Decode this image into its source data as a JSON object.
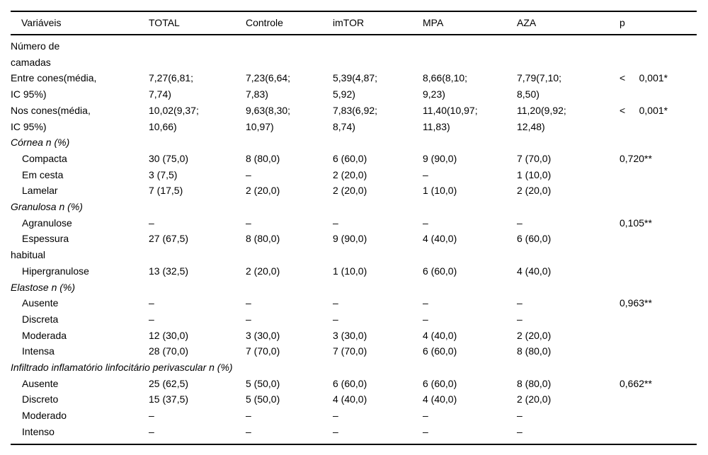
{
  "page": {
    "background_color": "#ffffff",
    "text_color": "#000000",
    "rule_color": "#000000"
  },
  "table": {
    "headers": [
      "Variáveis",
      "TOTAL",
      "Controle",
      "imTOR",
      "MPA",
      "AZA",
      "p"
    ],
    "rows": [
      {
        "style": "plain",
        "label": "Número de\ncamadas",
        "cells": [
          "",
          "",
          "",
          "",
          ""
        ],
        "p": ""
      },
      {
        "style": "plain",
        "label": "Entre cones(média,\nIC 95%)",
        "cells": [
          "7,27(6,81;\n7,74)",
          "7,23(6,64;\n7,83)",
          "5,39(4,87;\n5,92)",
          "8,66(8,10;\n9,23)",
          "7,79(7,10;\n8,50)"
        ],
        "p": "<     0,001*"
      },
      {
        "style": "plain",
        "label": "Nos cones(média,\nIC 95%)",
        "cells": [
          "10,02(9,37;\n10,66)",
          "9,63(8,30;\n10,97)",
          "7,83(6,92;\n8,74)",
          "11,40(10,97;\n11,83)",
          "11,20(9,92;\n12,48)"
        ],
        "p": "<     0,001*"
      },
      {
        "style": "section",
        "label": "Córnea n (%)",
        "cells": [
          "",
          "",
          "",
          "",
          ""
        ],
        "p": ""
      },
      {
        "style": "item",
        "label": "Compacta",
        "cells": [
          "30 (75,0)",
          "8 (80,0)",
          "6 (60,0)",
          "9 (90,0)",
          "7 (70,0)"
        ],
        "p": "0,720**"
      },
      {
        "style": "item",
        "label": "Em cesta",
        "cells": [
          "3 (7,5)",
          "–",
          "2 (20,0)",
          "–",
          "1 (10,0)"
        ],
        "p": ""
      },
      {
        "style": "item",
        "label": "Lamelar",
        "cells": [
          "7 (17,5)",
          "2 (20,0)",
          "2 (20,0)",
          "1 (10,0)",
          "2 (20,0)"
        ],
        "p": ""
      },
      {
        "style": "section",
        "label": "Granulosa n (%)",
        "cells": [
          "",
          "",
          "",
          "",
          ""
        ],
        "p": ""
      },
      {
        "style": "item",
        "label": "Agranulose",
        "cells": [
          "–",
          "–",
          "–",
          "–",
          "–"
        ],
        "p": "0,105**"
      },
      {
        "style": "item",
        "label": "Espessura\nhabitual",
        "cells": [
          "27 (67,5)",
          "8 (80,0)",
          "9 (90,0)",
          "4 (40,0)",
          "6 (60,0)"
        ],
        "p": ""
      },
      {
        "style": "item",
        "label": "Hipergranulose",
        "cells": [
          "13 (32,5)",
          "2 (20,0)",
          "1 (10,0)",
          "6 (60,0)",
          "4 (40,0)"
        ],
        "p": ""
      },
      {
        "style": "section",
        "label": "Elastose n (%)",
        "cells": [
          "",
          "",
          "",
          "",
          ""
        ],
        "p": ""
      },
      {
        "style": "item",
        "label": "Ausente",
        "cells": [
          "–",
          "–",
          "–",
          "–",
          "–"
        ],
        "p": "0,963**"
      },
      {
        "style": "item",
        "label": "Discreta",
        "cells": [
          "–",
          "–",
          "–",
          "–",
          "–"
        ],
        "p": ""
      },
      {
        "style": "item",
        "label": "Moderada",
        "cells": [
          "12 (30,0)",
          "3 (30,0)",
          "3 (30,0)",
          "4 (40,0)",
          "2 (20,0)"
        ],
        "p": ""
      },
      {
        "style": "item",
        "label": "Intensa",
        "cells": [
          "28 (70,0)",
          "7 (70,0)",
          "7 (70,0)",
          "6 (60,0)",
          "8 (80,0)"
        ],
        "p": ""
      },
      {
        "style": "section",
        "label": "Infiltrado inflamatório linfocitário perivascular n (%)",
        "cells": [
          "",
          "",
          "",
          "",
          ""
        ],
        "p": ""
      },
      {
        "style": "item",
        "label": "Ausente",
        "cells": [
          "25 (62,5)",
          "5 (50,0)",
          "6 (60,0)",
          "6 (60,0)",
          "8 (80,0)"
        ],
        "p": "0,662**"
      },
      {
        "style": "item",
        "label": "Discreto",
        "cells": [
          "15 (37,5)",
          "5 (50,0)",
          "4 (40,0)",
          "4 (40,0)",
          "2 (20,0)"
        ],
        "p": ""
      },
      {
        "style": "item",
        "label": "Moderado",
        "cells": [
          "–",
          "–",
          "–",
          "–",
          "–"
        ],
        "p": ""
      },
      {
        "style": "item",
        "label": "Intenso",
        "cells": [
          "–",
          "–",
          "–",
          "–",
          "–"
        ],
        "p": ""
      }
    ]
  }
}
